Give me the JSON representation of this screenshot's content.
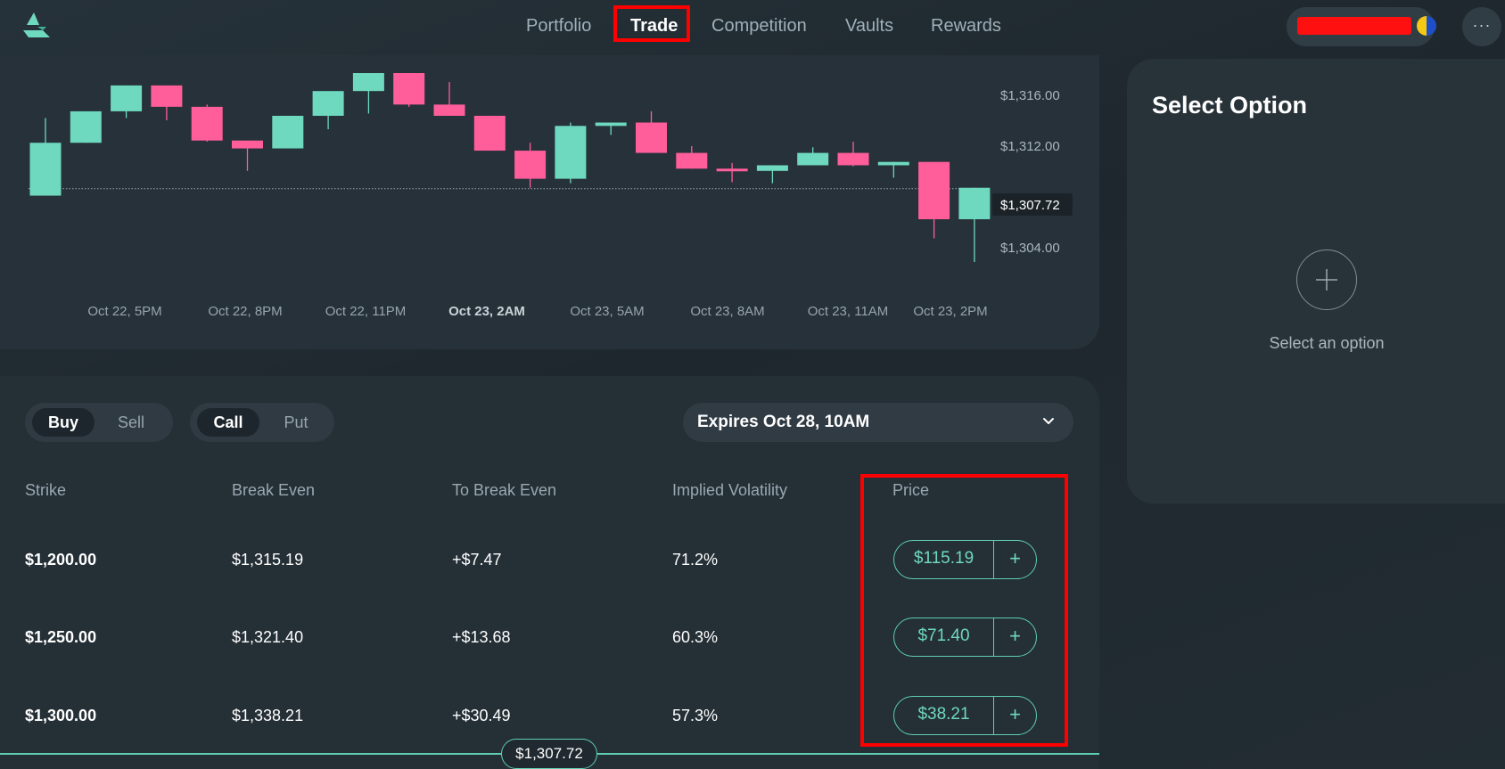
{
  "header": {
    "logo": "app-logo-icon",
    "nav": [
      {
        "label": "Portfolio",
        "active": false
      },
      {
        "label": "Trade",
        "active": true
      },
      {
        "label": "Competition",
        "active": false
      },
      {
        "label": "Vaults",
        "active": false
      },
      {
        "label": "Rewards",
        "active": false
      }
    ],
    "more_icon": "ellipsis-icon",
    "more_label": "···"
  },
  "colors": {
    "up": "#6ed9bf",
    "down": "#ff5e9b",
    "accent": "#5fcfb1",
    "highlight": "#ff0000"
  },
  "chart_data": {
    "type": "candlestick",
    "x_ticks": [
      "Oct 22, 5PM",
      "Oct 22, 8PM",
      "Oct 22, 11PM",
      "Oct 23, 2AM",
      "Oct 23, 5AM",
      "Oct 23, 8AM",
      "Oct 23, 11AM",
      "Oct 23, 2PM"
    ],
    "x_tick_bold": "Oct 23, 2AM",
    "y_ticks": [
      "$1,316.00",
      "$1,312.00",
      "$1,304.00"
    ],
    "current_price_label": "$1,307.72",
    "current_price": 1307.72,
    "ylim": [
      1301.2,
      1318.0
    ],
    "candles": [
      {
        "o": 1307.1,
        "h": 1314.0,
        "l": 1307.1,
        "c": 1311.8
      },
      {
        "o": 1311.8,
        "h": 1314.6,
        "l": 1311.8,
        "c": 1314.6
      },
      {
        "o": 1314.6,
        "h": 1316.9,
        "l": 1314.0,
        "c": 1316.9
      },
      {
        "o": 1316.9,
        "h": 1316.9,
        "l": 1313.8,
        "c": 1315.0
      },
      {
        "o": 1315.0,
        "h": 1315.2,
        "l": 1311.9,
        "c": 1312.0
      },
      {
        "o": 1312.0,
        "h": 1312.0,
        "l": 1309.3,
        "c": 1311.3
      },
      {
        "o": 1311.3,
        "h": 1314.2,
        "l": 1311.3,
        "c": 1314.2
      },
      {
        "o": 1314.2,
        "h": 1316.4,
        "l": 1313.0,
        "c": 1316.4
      },
      {
        "o": 1316.4,
        "h": 1318.0,
        "l": 1314.4,
        "c": 1318.0
      },
      {
        "o": 1318.0,
        "h": 1318.0,
        "l": 1315.0,
        "c": 1315.2
      },
      {
        "o": 1315.2,
        "h": 1317.2,
        "l": 1314.2,
        "c": 1314.2
      },
      {
        "o": 1314.2,
        "h": 1314.2,
        "l": 1311.1,
        "c": 1311.1
      },
      {
        "o": 1311.1,
        "h": 1311.8,
        "l": 1307.8,
        "c": 1308.6
      },
      {
        "o": 1308.6,
        "h": 1313.6,
        "l": 1308.2,
        "c": 1313.3
      },
      {
        "o": 1313.3,
        "h": 1313.6,
        "l": 1312.5,
        "c": 1313.6
      },
      {
        "o": 1313.6,
        "h": 1314.6,
        "l": 1310.9,
        "c": 1310.9
      },
      {
        "o": 1310.9,
        "h": 1311.5,
        "l": 1309.5,
        "c": 1309.5
      },
      {
        "o": 1309.5,
        "h": 1310.0,
        "l": 1308.3,
        "c": 1309.3
      },
      {
        "o": 1309.3,
        "h": 1309.8,
        "l": 1308.2,
        "c": 1309.8
      },
      {
        "o": 1309.8,
        "h": 1311.4,
        "l": 1309.8,
        "c": 1310.9
      },
      {
        "o": 1310.9,
        "h": 1311.9,
        "l": 1309.7,
        "c": 1309.8
      },
      {
        "o": 1309.8,
        "h": 1310.1,
        "l": 1308.7,
        "c": 1310.1
      },
      {
        "o": 1310.1,
        "h": 1310.1,
        "l": 1303.3,
        "c": 1305.0
      },
      {
        "o": 1305.0,
        "h": 1307.8,
        "l": 1301.2,
        "c": 1307.8
      }
    ]
  },
  "options": {
    "side_toggle": [
      {
        "label": "Buy",
        "active": true
      },
      {
        "label": "Sell",
        "active": false
      }
    ],
    "type_toggle": [
      {
        "label": "Call",
        "active": true
      },
      {
        "label": "Put",
        "active": false
      }
    ],
    "expiry": {
      "label": "Expires Oct 28, 10AM",
      "icon": "chevron-down-icon"
    },
    "columns": [
      "Strike",
      "Break Even",
      "To Break Even",
      "Implied Volatility",
      "Price"
    ],
    "rows": [
      {
        "strike": "$1,200.00",
        "break_even": "$1,315.19",
        "to_break_even": "+$7.47",
        "iv": "71.2%",
        "price": "$115.19"
      },
      {
        "strike": "$1,250.00",
        "break_even": "$1,321.40",
        "to_break_even": "+$13.68",
        "iv": "60.3%",
        "price": "$71.40"
      },
      {
        "strike": "$1,300.00",
        "break_even": "$1,338.21",
        "to_break_even": "+$30.49",
        "iv": "57.3%",
        "price": "$38.21"
      }
    ],
    "plus_label": "+",
    "current_price_pill": "$1,307.72"
  },
  "select_panel": {
    "title": "Select Option",
    "add_icon": "plus-circle-icon",
    "hint": "Select an option"
  }
}
